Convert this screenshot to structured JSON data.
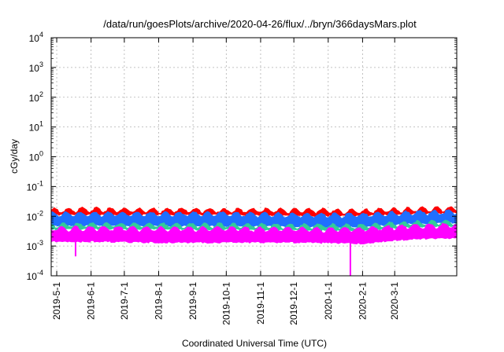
{
  "chart_data": {
    "type": "area",
    "title": "/data/run/goesPlots/archive/2020-04-26/flux/../bryn/366daysMars.plot",
    "xlabel": "Coordinated Universal Time (UTC)",
    "ylabel": "cGy/day",
    "y_scale": "log",
    "ylim": [
      0.0001,
      10000
    ],
    "xlim": [
      "2019-04-26",
      "2020-04-26"
    ],
    "grid": true,
    "y_ticks": [
      {
        "value": 0.0001,
        "base": "10",
        "exp": "-4"
      },
      {
        "value": 0.001,
        "base": "10",
        "exp": "-3"
      },
      {
        "value": 0.01,
        "base": "10",
        "exp": "-2"
      },
      {
        "value": 0.1,
        "base": "10",
        "exp": "-1"
      },
      {
        "value": 1,
        "base": "10",
        "exp": "0"
      },
      {
        "value": 10,
        "base": "10",
        "exp": "1"
      },
      {
        "value": 100,
        "base": "10",
        "exp": "2"
      },
      {
        "value": 1000,
        "base": "10",
        "exp": "3"
      },
      {
        "value": 10000,
        "base": "10",
        "exp": "4"
      }
    ],
    "x_ticks": [
      {
        "date": "2019-05-01",
        "label": "2019-5-1"
      },
      {
        "date": "2019-06-01",
        "label": "2019-6-1"
      },
      {
        "date": "2019-07-01",
        "label": "2019-7-1"
      },
      {
        "date": "2019-08-01",
        "label": "2019-8-1"
      },
      {
        "date": "2019-09-01",
        "label": "2019-9-1"
      },
      {
        "date": "2019-10-01",
        "label": "2019-10-1"
      },
      {
        "date": "2019-11-01",
        "label": "2019-11-1"
      },
      {
        "date": "2019-12-01",
        "label": "2019-12-1"
      },
      {
        "date": "2020-01-01",
        "label": "2020-1-1"
      },
      {
        "date": "2020-02-01",
        "label": "2020-2-1"
      },
      {
        "date": "2020-03-01",
        "label": "2020-3-1"
      }
    ],
    "series": [
      {
        "color": "#ff0000",
        "x": [
          "2019-04-26",
          "2019-06-01",
          "2019-08-01",
          "2019-10-01",
          "2019-12-01",
          "2020-02-01",
          "2020-03-15",
          "2020-04-26"
        ],
        "upper": [
          0.016,
          0.017,
          0.016,
          0.016,
          0.016,
          0.015,
          0.017,
          0.018
        ],
        "lower": [
          0.012,
          0.012,
          0.012,
          0.012,
          0.011,
          0.011,
          0.013,
          0.014
        ]
      },
      {
        "color": "#1f6fff",
        "x": [
          "2019-04-26",
          "2019-06-01",
          "2019-08-01",
          "2019-10-01",
          "2019-12-01",
          "2020-02-01",
          "2020-03-15",
          "2020-04-26"
        ],
        "upper": [
          0.012,
          0.012,
          0.012,
          0.012,
          0.011,
          0.011,
          0.013,
          0.014
        ],
        "lower": [
          0.005,
          0.0052,
          0.005,
          0.005,
          0.0048,
          0.0047,
          0.006,
          0.0065
        ]
      },
      {
        "color": "#33cc99",
        "x": [
          "2019-04-26",
          "2019-06-01",
          "2019-08-01",
          "2019-10-01",
          "2019-12-01",
          "2020-02-01",
          "2020-03-15",
          "2020-04-26"
        ],
        "upper": [
          0.005,
          0.0052,
          0.005,
          0.005,
          0.0048,
          0.0047,
          0.006,
          0.0065
        ],
        "lower": [
          0.0038,
          0.004,
          0.0038,
          0.0038,
          0.0036,
          0.0036,
          0.0046,
          0.005
        ]
      },
      {
        "color": "#ff00ff",
        "x": [
          "2019-04-26",
          "2019-06-01",
          "2019-08-01",
          "2019-10-01",
          "2019-12-01",
          "2020-02-01",
          "2020-03-15",
          "2020-04-26"
        ],
        "upper": [
          0.0038,
          0.004,
          0.0038,
          0.0038,
          0.0036,
          0.0036,
          0.0046,
          0.005
        ],
        "lower": [
          0.0015,
          0.0015,
          0.0014,
          0.0014,
          0.0014,
          0.0013,
          0.0018,
          0.002
        ]
      }
    ],
    "spikes": [
      {
        "color": "#ff00ff",
        "date": "2020-01-21",
        "value": 0.0001
      },
      {
        "color": "#ff00ff",
        "date": "2019-05-18",
        "value": 0.00045
      }
    ]
  }
}
